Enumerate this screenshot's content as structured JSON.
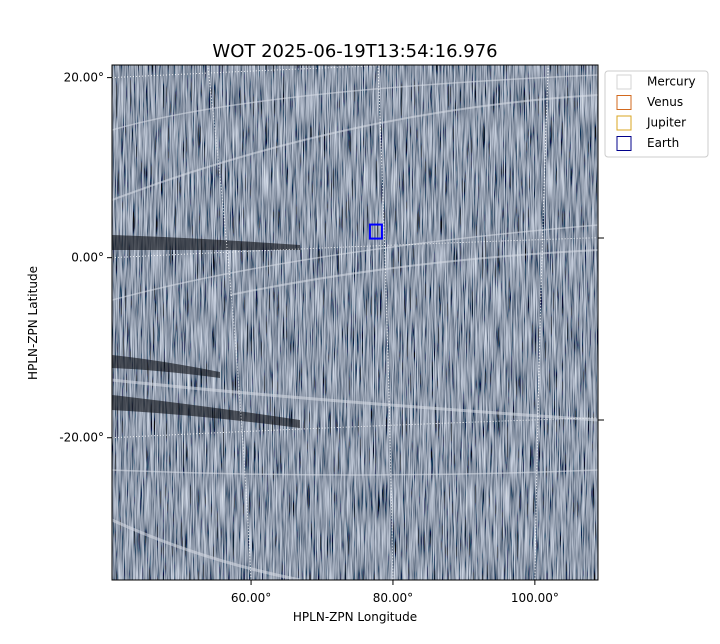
{
  "chart_data": {
    "type": "image",
    "title": "WOT 2025-06-19T13:54:16.976",
    "x_label": "HPLN-ZPN Longitude",
    "y_label": "HPLN-ZPN Latitude",
    "xlim": [
      40.4,
      108.9
    ],
    "ylim": [
      -35.8,
      21.4
    ],
    "xticks": [
      {
        "value": 60,
        "label": "60.00°"
      },
      {
        "value": 80,
        "label": "80.00°"
      },
      {
        "value": 100,
        "label": "100.00°"
      }
    ],
    "yticks": [
      {
        "value": 20,
        "label": "20.00°"
      },
      {
        "value": 0,
        "label": "0.00°"
      },
      {
        "value": -20,
        "label": "-20.00°"
      }
    ],
    "grid": true,
    "legend": "upper right",
    "series": [
      {
        "name": "Mercury",
        "color": "#d3d3d3"
      },
      {
        "name": "Venus",
        "color": "#d2691e"
      },
      {
        "name": "Jupiter",
        "color": "#daa520"
      },
      {
        "name": "Earth",
        "color": "#00008b",
        "x": [
          77.6
        ],
        "y": [
          2.9
        ]
      }
    ]
  }
}
